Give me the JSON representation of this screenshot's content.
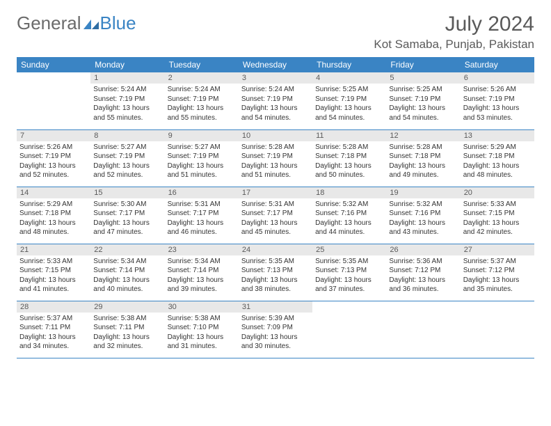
{
  "logo": {
    "textGray": "General",
    "textBlue": "Blue"
  },
  "header": {
    "title": "July 2024",
    "location": "Kot Samaba, Punjab, Pakistan"
  },
  "colors": {
    "headerBg": "#3a84c4",
    "headerText": "#ffffff",
    "dayNumBg": "#e8e8e8",
    "rowBorder": "#3a84c4",
    "bodyText": "#333333",
    "logoGray": "#6b6b6b",
    "logoBlue": "#3a84c4"
  },
  "typography": {
    "title_fontsize": 30,
    "location_fontsize": 17,
    "thead_fontsize": 12,
    "daynum_fontsize": 11,
    "daybody_fontsize": 10
  },
  "dayLabels": [
    "Sunday",
    "Monday",
    "Tuesday",
    "Wednesday",
    "Thursday",
    "Friday",
    "Saturday"
  ],
  "weeks": [
    [
      {
        "n": "",
        "sunrise": "",
        "sunset": "",
        "daylight": ""
      },
      {
        "n": "1",
        "sunrise": "5:24 AM",
        "sunset": "7:19 PM",
        "daylight": "13 hours and 55 minutes."
      },
      {
        "n": "2",
        "sunrise": "5:24 AM",
        "sunset": "7:19 PM",
        "daylight": "13 hours and 55 minutes."
      },
      {
        "n": "3",
        "sunrise": "5:24 AM",
        "sunset": "7:19 PM",
        "daylight": "13 hours and 54 minutes."
      },
      {
        "n": "4",
        "sunrise": "5:25 AM",
        "sunset": "7:19 PM",
        "daylight": "13 hours and 54 minutes."
      },
      {
        "n": "5",
        "sunrise": "5:25 AM",
        "sunset": "7:19 PM",
        "daylight": "13 hours and 54 minutes."
      },
      {
        "n": "6",
        "sunrise": "5:26 AM",
        "sunset": "7:19 PM",
        "daylight": "13 hours and 53 minutes."
      }
    ],
    [
      {
        "n": "7",
        "sunrise": "5:26 AM",
        "sunset": "7:19 PM",
        "daylight": "13 hours and 52 minutes."
      },
      {
        "n": "8",
        "sunrise": "5:27 AM",
        "sunset": "7:19 PM",
        "daylight": "13 hours and 52 minutes."
      },
      {
        "n": "9",
        "sunrise": "5:27 AM",
        "sunset": "7:19 PM",
        "daylight": "13 hours and 51 minutes."
      },
      {
        "n": "10",
        "sunrise": "5:28 AM",
        "sunset": "7:19 PM",
        "daylight": "13 hours and 51 minutes."
      },
      {
        "n": "11",
        "sunrise": "5:28 AM",
        "sunset": "7:18 PM",
        "daylight": "13 hours and 50 minutes."
      },
      {
        "n": "12",
        "sunrise": "5:28 AM",
        "sunset": "7:18 PM",
        "daylight": "13 hours and 49 minutes."
      },
      {
        "n": "13",
        "sunrise": "5:29 AM",
        "sunset": "7:18 PM",
        "daylight": "13 hours and 48 minutes."
      }
    ],
    [
      {
        "n": "14",
        "sunrise": "5:29 AM",
        "sunset": "7:18 PM",
        "daylight": "13 hours and 48 minutes."
      },
      {
        "n": "15",
        "sunrise": "5:30 AM",
        "sunset": "7:17 PM",
        "daylight": "13 hours and 47 minutes."
      },
      {
        "n": "16",
        "sunrise": "5:31 AM",
        "sunset": "7:17 PM",
        "daylight": "13 hours and 46 minutes."
      },
      {
        "n": "17",
        "sunrise": "5:31 AM",
        "sunset": "7:17 PM",
        "daylight": "13 hours and 45 minutes."
      },
      {
        "n": "18",
        "sunrise": "5:32 AM",
        "sunset": "7:16 PM",
        "daylight": "13 hours and 44 minutes."
      },
      {
        "n": "19",
        "sunrise": "5:32 AM",
        "sunset": "7:16 PM",
        "daylight": "13 hours and 43 minutes."
      },
      {
        "n": "20",
        "sunrise": "5:33 AM",
        "sunset": "7:15 PM",
        "daylight": "13 hours and 42 minutes."
      }
    ],
    [
      {
        "n": "21",
        "sunrise": "5:33 AM",
        "sunset": "7:15 PM",
        "daylight": "13 hours and 41 minutes."
      },
      {
        "n": "22",
        "sunrise": "5:34 AM",
        "sunset": "7:14 PM",
        "daylight": "13 hours and 40 minutes."
      },
      {
        "n": "23",
        "sunrise": "5:34 AM",
        "sunset": "7:14 PM",
        "daylight": "13 hours and 39 minutes."
      },
      {
        "n": "24",
        "sunrise": "5:35 AM",
        "sunset": "7:13 PM",
        "daylight": "13 hours and 38 minutes."
      },
      {
        "n": "25",
        "sunrise": "5:35 AM",
        "sunset": "7:13 PM",
        "daylight": "13 hours and 37 minutes."
      },
      {
        "n": "26",
        "sunrise": "5:36 AM",
        "sunset": "7:12 PM",
        "daylight": "13 hours and 36 minutes."
      },
      {
        "n": "27",
        "sunrise": "5:37 AM",
        "sunset": "7:12 PM",
        "daylight": "13 hours and 35 minutes."
      }
    ],
    [
      {
        "n": "28",
        "sunrise": "5:37 AM",
        "sunset": "7:11 PM",
        "daylight": "13 hours and 34 minutes."
      },
      {
        "n": "29",
        "sunrise": "5:38 AM",
        "sunset": "7:11 PM",
        "daylight": "13 hours and 32 minutes."
      },
      {
        "n": "30",
        "sunrise": "5:38 AM",
        "sunset": "7:10 PM",
        "daylight": "13 hours and 31 minutes."
      },
      {
        "n": "31",
        "sunrise": "5:39 AM",
        "sunset": "7:09 PM",
        "daylight": "13 hours and 30 minutes."
      },
      {
        "n": "",
        "sunrise": "",
        "sunset": "",
        "daylight": ""
      },
      {
        "n": "",
        "sunrise": "",
        "sunset": "",
        "daylight": ""
      },
      {
        "n": "",
        "sunrise": "",
        "sunset": "",
        "daylight": ""
      }
    ]
  ],
  "labels": {
    "sunrise": "Sunrise:",
    "sunset": "Sunset:",
    "daylight": "Daylight:"
  }
}
